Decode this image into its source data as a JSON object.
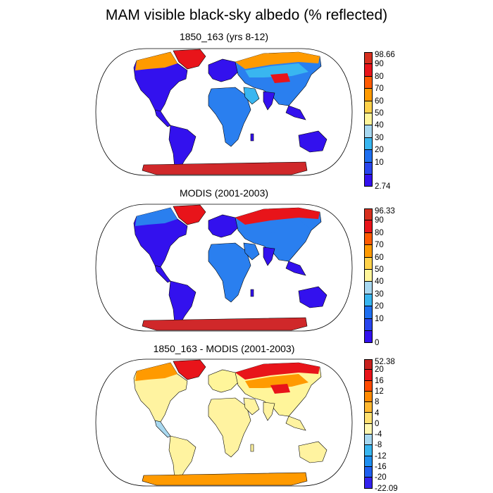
{
  "title": "MAM visible black-sky albedo (% reflected)",
  "panels": [
    {
      "title": "1850_163 (yrs 8-12)",
      "colorbar": {
        "labels": [
          "98.66",
          "90",
          "80",
          "70",
          "60",
          "50",
          "40",
          "30",
          "20",
          "10",
          "2.74"
        ],
        "colors": [
          "#d7301f",
          "#e8141a",
          "#ff5a00",
          "#ff9a00",
          "#ffd24a",
          "#fff59a",
          "#a8d8f0",
          "#39b6f0",
          "#1e6ff0",
          "#2845ee",
          "#3311ee"
        ]
      }
    },
    {
      "title": "MODIS (2001-2003)",
      "colorbar": {
        "labels": [
          "96.33",
          "90",
          "80",
          "70",
          "60",
          "50",
          "40",
          "30",
          "20",
          "10",
          "0"
        ],
        "colors": [
          "#d7301f",
          "#e8141a",
          "#ff5a00",
          "#ff9a00",
          "#ffd24a",
          "#fff59a",
          "#a8d8f0",
          "#39b6f0",
          "#1e6ff0",
          "#2845ee",
          "#3311ee"
        ]
      }
    },
    {
      "title": "1850_163 - MODIS (2001-2003)",
      "colorbar": {
        "labels": [
          "52.38",
          "20",
          "16",
          "12",
          "8",
          "4",
          "0",
          "-4",
          "-8",
          "-12",
          "-16",
          "-20",
          "-22.09"
        ],
        "colors": [
          "#c8201e",
          "#e8141a",
          "#ff4a00",
          "#ff8a00",
          "#ffb830",
          "#ffe070",
          "#fff7b0",
          "#a8d8f0",
          "#39b6f0",
          "#1e8ff0",
          "#1e5ff0",
          "#3322ee"
        ]
      }
    }
  ],
  "colors": {
    "land_blue": "#3311ee",
    "land_mid_blue": "#2a7fef",
    "land_light_blue": "#39b6f0",
    "land_yellow": "#fff59a",
    "land_orange": "#ff9a00",
    "land_red": "#e8141a",
    "ice_red": "#d0282a",
    "diff_yellow": "#fff3a0",
    "diff_light_blue": "#a8d8f0"
  }
}
